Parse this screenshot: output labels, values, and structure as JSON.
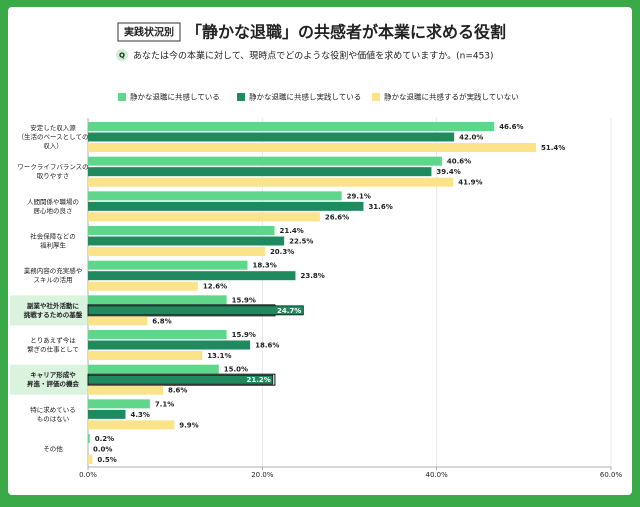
{
  "chart_data": {
    "type": "hbar",
    "tag": "実践状況別",
    "title": "「静かな退職」の共感者が本業に求める役割",
    "question_mark": "Q",
    "subtitle": "あなたは今の本業に対して、現時点でどのような役割や価値を求めていますか。(n=453)",
    "categories": [
      [
        "安定した収入源",
        "（生活のベースとしての",
        "収入）"
      ],
      [
        "ワークライフバランスの",
        "取りやすさ"
      ],
      [
        "人間関係や職場の",
        "居心地の良さ"
      ],
      [
        "社会保障などの",
        "福利厚生"
      ],
      [
        "業務内容の充実感や",
        "スキルの活用"
      ],
      [
        "副業や社外活動に",
        "挑戦するための基盤"
      ],
      [
        "とりあえず今は",
        "繋ぎの仕事として"
      ],
      [
        "キャリア形成や",
        "昇進・評価の機会"
      ],
      [
        "特に求めている",
        "ものはない"
      ],
      [
        "その他"
      ]
    ],
    "highlight": [
      5,
      7
    ],
    "series": [
      {
        "name": "静かな退職に共感している",
        "color": "#5fd68a",
        "values": [
          46.6,
          40.6,
          29.1,
          21.4,
          18.3,
          15.9,
          15.9,
          15.0,
          7.1,
          0.2
        ],
        "value_labels": [
          "46.6%",
          "40.6%",
          "29.1%",
          "21.4%",
          "18.3%",
          "15.9%",
          "15.9%",
          "15.0%",
          "7.1%",
          "0.2%"
        ]
      },
      {
        "name": "静かな退職に共感し実践している",
        "color": "#1f8a5e",
        "values": [
          42.0,
          39.4,
          31.6,
          22.5,
          23.8,
          24.7,
          18.6,
          21.2,
          4.3,
          0.0
        ],
        "value_labels": [
          "42.0%",
          "39.4%",
          "31.6%",
          "22.5%",
          "23.8%",
          "24.7%",
          "18.6%",
          "21.2%",
          "4.3%",
          "0.0%"
        ]
      },
      {
        "name": "静かな退職に共感するが実践していない",
        "color": "#fbe38a",
        "values": [
          51.4,
          41.9,
          26.6,
          20.3,
          12.6,
          6.8,
          13.1,
          8.6,
          9.9,
          0.5
        ],
        "value_labels": [
          "51.4%",
          "41.9%",
          "26.6%",
          "20.3%",
          "12.6%",
          "6.8%",
          "13.1%",
          "8.6%",
          "9.9%",
          "0.5%"
        ]
      }
    ],
    "xlim": [
      0,
      60
    ],
    "xticks": [
      {
        "value": 0,
        "label": "0.0%"
      },
      {
        "value": 20,
        "label": "20.0%"
      },
      {
        "value": 40,
        "label": "40.0%"
      },
      {
        "value": 60,
        "label": "60.0%"
      }
    ],
    "grid": true
  }
}
